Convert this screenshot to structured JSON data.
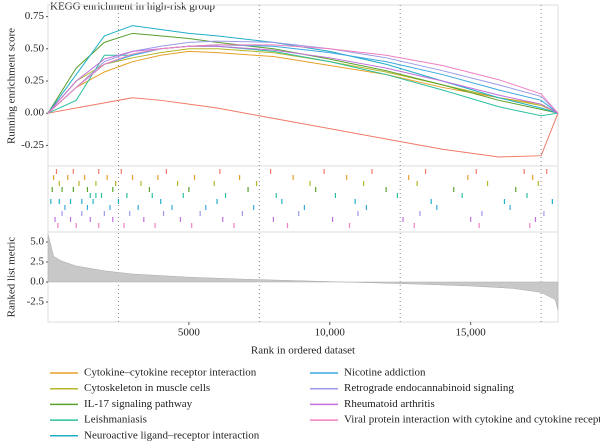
{
  "chart_data": [
    {
      "type": "line",
      "title": "KEGG enrichment in high-risk group",
      "ylabel": "Running enrichment score",
      "xlim": [
        0,
        18100
      ],
      "ylim": [
        -0.41,
        0.84
      ],
      "yticks": [
        0.75,
        {
          "value": 0.5,
          "label": "0.50"
        },
        0.25,
        {
          "value": 0,
          "label": "0.00"
        },
        -0.25
      ],
      "dotted_lines": [
        2500,
        7500,
        12500,
        17500
      ],
      "x": [
        0,
        1000,
        2000,
        3000,
        4000,
        5000,
        6000,
        8000,
        10000,
        12000,
        14000,
        16000,
        17500,
        18100
      ],
      "series": [
        {
          "color": "#f07a66",
          "values": [
            0,
            0.04,
            0.08,
            0.12,
            0.1,
            0.07,
            0.04,
            -0.04,
            -0.12,
            -0.2,
            -0.28,
            -0.34,
            -0.33,
            0
          ],
          "hits": [
            300,
            900,
            1800,
            2600,
            4200,
            6100,
            7900,
            9800,
            11500,
            13400,
            15200,
            16900,
            17700
          ]
        },
        {
          "name": "Cytokine–cytokine receptor interaction",
          "color": "#e6a028",
          "values": [
            0,
            0.2,
            0.32,
            0.4,
            0.45,
            0.48,
            0.47,
            0.44,
            0.37,
            0.3,
            0.2,
            0.12,
            0.07,
            0
          ],
          "hits": [
            200,
            700,
            1300,
            2100,
            3000,
            3900,
            5200,
            6800,
            8700,
            10600,
            12800,
            14900,
            17200
          ]
        },
        {
          "name": "Cytoskeleton in muscle cells",
          "color": "#b5b52a",
          "values": [
            0,
            0.25,
            0.38,
            0.43,
            0.47,
            0.5,
            0.5,
            0.47,
            0.4,
            0.32,
            0.22,
            0.12,
            0.06,
            0
          ],
          "hits": [
            400,
            1100,
            1700,
            2400,
            3300,
            4600,
            5900,
            7400,
            9300,
            11200,
            13100,
            15600,
            17400
          ]
        },
        {
          "name": "IL-17 signaling pathway",
          "color": "#5aa02c",
          "values": [
            0,
            0.35,
            0.55,
            0.62,
            0.6,
            0.58,
            0.55,
            0.5,
            0.42,
            0.33,
            0.22,
            0.1,
            0.03,
            0
          ],
          "hits": [
            150,
            500,
            900,
            1400,
            2300,
            3600,
            5000,
            7100,
            9500,
            12000,
            14400,
            16600
          ]
        },
        {
          "name": "Leishmaniasis",
          "color": "#2cc0a0",
          "values": [
            0,
            0.1,
            0.45,
            0.45,
            0.5,
            0.52,
            0.52,
            0.48,
            0.4,
            0.3,
            0.18,
            0.05,
            -0.02,
            0
          ],
          "hits": [
            1500,
            1700,
            1900,
            2800,
            3700,
            4800,
            6300,
            8100,
            10200,
            12400,
            14700,
            17000
          ]
        },
        {
          "name": "Neuroactive ligand–receptor interaction",
          "color": "#20b0c8",
          "values": [
            0,
            0.3,
            0.6,
            0.68,
            0.65,
            0.62,
            0.6,
            0.55,
            0.48,
            0.38,
            0.25,
            0.12,
            0.04,
            0
          ],
          "hits": [
            100,
            400,
            800,
            1200,
            1600,
            2500,
            4000,
            6000,
            8300,
            10900,
            13600,
            16200,
            17900
          ]
        },
        {
          "name": "Nicotine addiction",
          "color": "#3aa8e0",
          "values": [
            0,
            0.2,
            0.38,
            0.45,
            0.5,
            0.52,
            0.53,
            0.52,
            0.47,
            0.4,
            0.3,
            0.18,
            0.1,
            0
          ],
          "hits": [
            600,
            1400,
            2200,
            3200,
            4400,
            5600,
            7300,
            9100,
            11300,
            13800,
            16400
          ]
        },
        {
          "name": "Retrograde endocannabinoid signaling",
          "color": "#9a9ae8",
          "values": [
            0,
            0.2,
            0.4,
            0.48,
            0.52,
            0.55,
            0.56,
            0.55,
            0.5,
            0.43,
            0.33,
            0.22,
            0.13,
            0
          ],
          "hits": [
            500,
            1200,
            2000,
            2900,
            4100,
            5400,
            6900,
            8900,
            11000,
            13200,
            15400,
            17600
          ]
        },
        {
          "name": "Rheumatoid arthritis",
          "color": "#c070d8",
          "values": [
            0,
            0.25,
            0.42,
            0.48,
            0.5,
            0.52,
            0.52,
            0.49,
            0.43,
            0.35,
            0.25,
            0.14,
            0.07,
            0
          ],
          "hits": [
            250,
            800,
            1500,
            2300,
            3400,
            4700,
            6200,
            8000,
            10100,
            12600,
            15000,
            17300
          ]
        },
        {
          "name": "Viral protein interaction with cytokine and cytokine receptor",
          "color": "#f080c0",
          "values": [
            0,
            0.2,
            0.38,
            0.46,
            0.5,
            0.52,
            0.53,
            0.53,
            0.5,
            0.45,
            0.37,
            0.26,
            0.15,
            0
          ],
          "hits": [
            350,
            1000,
            1800,
            2700,
            3800,
            5100,
            6600,
            8500,
            10700,
            13000,
            15300,
            17100
          ]
        }
      ]
    },
    {
      "type": "area",
      "ylabel": "Ranked list metric",
      "xlabel": "Rank in ordered dataset",
      "color": "#c8c8c8",
      "xlim": [
        0,
        18100
      ],
      "ylim": [
        -5,
        6.25
      ],
      "yticks": [
        {
          "value": 5,
          "label": "5.0"
        },
        2.5,
        {
          "value": 0,
          "label": "0.0"
        },
        -2.5
      ],
      "xticks": [
        5000,
        {
          "value": 10000,
          "label": "10,000"
        },
        {
          "value": 15000,
          "label": "15,000"
        }
      ],
      "x": [
        0,
        200,
        500,
        1000,
        2000,
        3000,
        5000,
        7000,
        9000,
        11000,
        13000,
        15000,
        16500,
        17500,
        18000,
        18100
      ],
      "values": [
        6,
        3.2,
        2.6,
        2.0,
        1.4,
        1.0,
        0.6,
        0.35,
        0.15,
        -0.05,
        -0.25,
        -0.5,
        -0.8,
        -1.3,
        -2.2,
        -3.5
      ]
    }
  ]
}
